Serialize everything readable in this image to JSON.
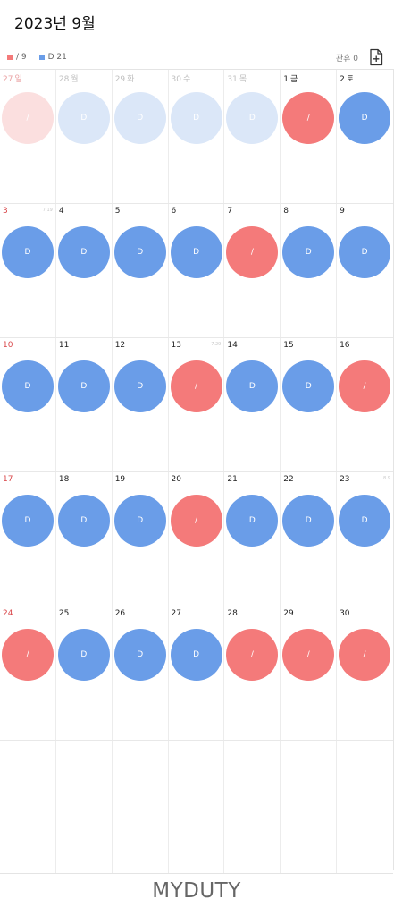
{
  "header": {
    "title": "2023년 9월"
  },
  "legend": [
    {
      "label": "/ 9",
      "color": "#f47a7a"
    },
    {
      "label": "D 21",
      "color": "#6a9de8"
    }
  ],
  "leave_label": "관휴 0",
  "brand": "MYDUTY",
  "colors": {
    "red": "#f47a7a",
    "blue": "#6a9de8",
    "sunday": "#d9474a"
  },
  "weeks": [
    [
      {
        "date": "27",
        "weekday": "일",
        "shift": "/",
        "color": "red",
        "other_month": true,
        "sunday": true
      },
      {
        "date": "28",
        "weekday": "월",
        "shift": "D",
        "color": "blue",
        "other_month": true
      },
      {
        "date": "29",
        "weekday": "화",
        "shift": "D",
        "color": "blue",
        "other_month": true
      },
      {
        "date": "30",
        "weekday": "수",
        "shift": "D",
        "color": "blue",
        "other_month": true
      },
      {
        "date": "31",
        "weekday": "목",
        "shift": "D",
        "color": "blue",
        "other_month": true
      },
      {
        "date": "1",
        "weekday": "금",
        "shift": "/",
        "color": "red"
      },
      {
        "date": "2",
        "weekday": "토",
        "shift": "D",
        "color": "blue"
      }
    ],
    [
      {
        "date": "3",
        "shift": "D",
        "color": "blue",
        "sunday": true,
        "note": "7.19"
      },
      {
        "date": "4",
        "shift": "D",
        "color": "blue"
      },
      {
        "date": "5",
        "shift": "D",
        "color": "blue"
      },
      {
        "date": "6",
        "shift": "D",
        "color": "blue"
      },
      {
        "date": "7",
        "shift": "/",
        "color": "red"
      },
      {
        "date": "8",
        "shift": "D",
        "color": "blue"
      },
      {
        "date": "9",
        "shift": "D",
        "color": "blue"
      }
    ],
    [
      {
        "date": "10",
        "shift": "D",
        "color": "blue",
        "sunday": true
      },
      {
        "date": "11",
        "shift": "D",
        "color": "blue"
      },
      {
        "date": "12",
        "shift": "D",
        "color": "blue"
      },
      {
        "date": "13",
        "shift": "/",
        "color": "red",
        "note": "7.29"
      },
      {
        "date": "14",
        "shift": "D",
        "color": "blue"
      },
      {
        "date": "15",
        "shift": "D",
        "color": "blue"
      },
      {
        "date": "16",
        "shift": "/",
        "color": "red"
      }
    ],
    [
      {
        "date": "17",
        "shift": "D",
        "color": "blue",
        "sunday": true
      },
      {
        "date": "18",
        "shift": "D",
        "color": "blue"
      },
      {
        "date": "19",
        "shift": "D",
        "color": "blue"
      },
      {
        "date": "20",
        "shift": "/",
        "color": "red"
      },
      {
        "date": "21",
        "shift": "D",
        "color": "blue"
      },
      {
        "date": "22",
        "shift": "D",
        "color": "blue"
      },
      {
        "date": "23",
        "shift": "D",
        "color": "blue",
        "note": "8.9"
      }
    ],
    [
      {
        "date": "24",
        "shift": "/",
        "color": "red",
        "sunday": true
      },
      {
        "date": "25",
        "shift": "D",
        "color": "blue"
      },
      {
        "date": "26",
        "shift": "D",
        "color": "blue"
      },
      {
        "date": "27",
        "shift": "D",
        "color": "blue"
      },
      {
        "date": "28",
        "shift": "/",
        "color": "red"
      },
      {
        "date": "29",
        "shift": "/",
        "color": "red"
      },
      {
        "date": "30",
        "shift": "/",
        "color": "red"
      }
    ],
    [
      {},
      {},
      {},
      {},
      {},
      {},
      {}
    ]
  ]
}
